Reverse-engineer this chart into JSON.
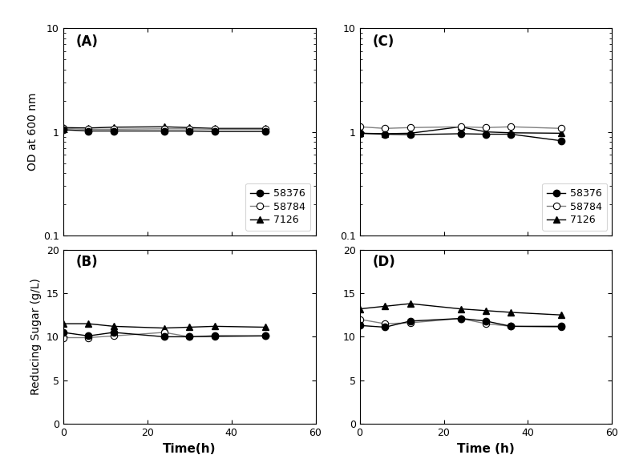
{
  "time": [
    0,
    6,
    12,
    24,
    30,
    36,
    48
  ],
  "A_58376": [
    1.05,
    1.02,
    1.02,
    1.02,
    1.02,
    1.01,
    1.01
  ],
  "A_58784": [
    1.08,
    1.06,
    1.06,
    1.07,
    1.07,
    1.06,
    1.06
  ],
  "A_7126": [
    1.1,
    1.09,
    1.11,
    1.12,
    1.1,
    1.08,
    1.08
  ],
  "B_58376": [
    10.5,
    10.1,
    10.5,
    10.0,
    10.0,
    10.1,
    10.1
  ],
  "B_58784": [
    9.9,
    9.9,
    10.1,
    10.5,
    10.0,
    10.0,
    10.1
  ],
  "B_7126": [
    11.5,
    11.5,
    11.2,
    11.0,
    11.1,
    11.2,
    11.1
  ],
  "C_58376": [
    0.97,
    0.95,
    0.94,
    0.96,
    0.95,
    0.95,
    0.82
  ],
  "C_58784": [
    1.12,
    1.08,
    1.1,
    1.12,
    1.1,
    1.12,
    1.08
  ],
  "C_7126": [
    0.97,
    0.96,
    0.97,
    1.12,
    1.0,
    0.98,
    0.97
  ],
  "D_58376": [
    11.3,
    11.1,
    11.8,
    12.1,
    11.8,
    11.2,
    11.2
  ],
  "D_58784": [
    12.0,
    11.5,
    11.6,
    12.1,
    11.5,
    11.2,
    11.1
  ],
  "D_7126": [
    13.2,
    13.5,
    13.8,
    13.2,
    13.0,
    12.8,
    12.5
  ],
  "legend_labels": [
    "58376",
    "58784",
    "7126"
  ],
  "ylabel_top": "OD at 600 nm",
  "ylabel_bottom": "Reducing Sugar (g/L)",
  "xlabel_left": "Time(h)",
  "xlabel_right": "Time (h)",
  "panel_labels": [
    "(A)",
    "(B)",
    "(C)",
    "(D)"
  ],
  "xlim": [
    0,
    60
  ],
  "ylim_top_log_min": 0.1,
  "ylim_top_log_max": 10,
  "ylim_bottom_min": 0,
  "ylim_bottom_max": 20,
  "yticks_bottom": [
    0,
    5,
    10,
    15,
    20
  ],
  "xticks": [
    0,
    20,
    40,
    60
  ]
}
